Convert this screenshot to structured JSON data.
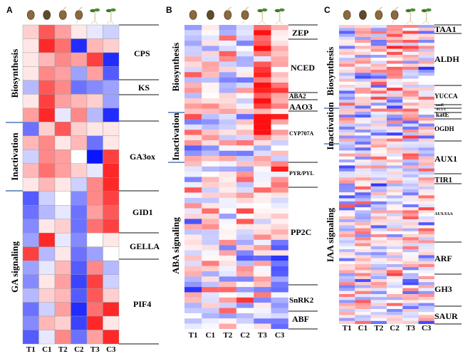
{
  "color_scale": {
    "low": "#0a14ff",
    "mid": "#ffffff",
    "high": "#ff1010"
  },
  "columns": [
    "T1",
    "C1",
    "T2",
    "C2",
    "T3",
    "C3"
  ],
  "stage_icons": [
    "seed-icon",
    "germinating-seed-icon",
    "cracked-seed-icon",
    "sprouting-seed-icon",
    "seedling-icon",
    "seedling-icon"
  ],
  "panels": [
    {
      "letter": "A",
      "categories": [
        "Biosynthesis",
        "Inactivation",
        "GA signaling"
      ],
      "genes": [
        "CPS",
        "KS",
        "GA3ox",
        "GID1",
        "GELLA",
        "PIF4"
      ],
      "matrix": [
        [
          0.2,
          0.7,
          0.4,
          0.1,
          -0.1,
          -0.2
        ],
        [
          0.1,
          0.9,
          0.6,
          -0.9,
          0.3,
          0.2
        ],
        [
          0.1,
          0.3,
          0.5,
          0.4,
          0.8,
          -0.9
        ],
        [
          0.1,
          0.5,
          0.4,
          -0.4,
          0.4,
          -0.7
        ],
        [
          -0.3,
          0.7,
          0.5,
          -0.6,
          -0.5,
          -0.4
        ],
        [
          0.1,
          0.8,
          0.4,
          0.3,
          0.2,
          -0.4
        ],
        [
          0.4,
          0.9,
          -0.1,
          0.5,
          -0.3,
          -0.9
        ],
        [
          -0.6,
          0.2,
          0.7,
          0.2,
          0.1,
          0.1
        ],
        [
          0.3,
          0.5,
          0.1,
          0.3,
          -0.6,
          0.1
        ],
        [
          -0.2,
          0.5,
          0.4,
          0.0,
          -1.0,
          0.8
        ],
        [
          0.3,
          0.6,
          0.4,
          0.2,
          -0.1,
          0.9
        ],
        [
          0.1,
          0.3,
          0.1,
          -0.2,
          0.5,
          0.9
        ],
        [
          -0.7,
          -0.2,
          0.0,
          -0.5,
          0.5,
          0.8
        ],
        [
          -0.6,
          -0.3,
          -0.1,
          -0.6,
          0.4,
          0.7
        ],
        [
          -0.5,
          0.1,
          0.2,
          -0.6,
          0.6,
          0.8
        ],
        [
          -0.4,
          0.9,
          -0.1,
          -0.5,
          0.0,
          0.1
        ],
        [
          0.8,
          -0.3,
          0.1,
          -0.6,
          -0.4,
          0.0
        ],
        [
          -0.4,
          -0.1,
          0.3,
          -0.7,
          0.5,
          -0.3
        ],
        [
          -0.5,
          0.1,
          0.4,
          -0.8,
          0.8,
          -0.2
        ],
        [
          -0.3,
          0.2,
          0.3,
          -0.7,
          0.7,
          0.2
        ],
        [
          -0.6,
          -0.2,
          0.4,
          -0.9,
          0.6,
          0.9
        ],
        [
          -0.5,
          0.3,
          0.2,
          -0.8,
          0.9,
          0.1
        ],
        [
          -0.7,
          -0.1,
          0.5,
          -0.6,
          0.4,
          0.9
        ]
      ]
    },
    {
      "letter": "B",
      "categories": [
        "Biosynthesis",
        "Inactivation",
        "ABA signaling"
      ],
      "genes": [
        "ZEP",
        "NCED",
        "ABA2",
        "AAO3",
        "CYP707A",
        "PYR/PYL",
        "PP2C",
        "SnRK2",
        "ABF"
      ],
      "rows": 58
    },
    {
      "letter": "C",
      "categories": [
        "Biosynthesis",
        "Inactivation",
        "IAA signaling"
      ],
      "genes": [
        "TAA1",
        "ALDH",
        "YUCCA",
        "amiE",
        "ACUT",
        "katE",
        "OGDH",
        "AUX1",
        "TIR1",
        "AUX/IAA",
        "ARF",
        "GH3",
        "SAUR"
      ],
      "rows": 100
    }
  ]
}
